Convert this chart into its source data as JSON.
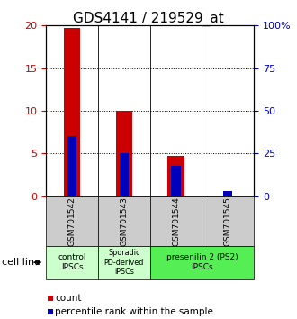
{
  "title": "GDS4141 / 219529_at",
  "samples": [
    "GSM701542",
    "GSM701543",
    "GSM701544",
    "GSM701545"
  ],
  "count_values": [
    19.7,
    10.0,
    4.7,
    0.0
  ],
  "percentile_values": [
    35,
    25,
    18,
    3
  ],
  "left_ylim": [
    0,
    20
  ],
  "right_ylim": [
    0,
    100
  ],
  "left_yticks": [
    0,
    5,
    10,
    15,
    20
  ],
  "right_yticks": [
    0,
    25,
    50,
    75,
    100
  ],
  "right_yticklabels": [
    "0",
    "25",
    "50",
    "75",
    "100%"
  ],
  "bar_color": "#cc0000",
  "percentile_color": "#0000bb",
  "bar_width": 0.32,
  "ytick_color_left": "#cc0000",
  "ytick_color_right": "#0000bb",
  "title_fontsize": 11,
  "tick_fontsize": 8,
  "sample_fontsize": 6.5,
  "group_fontsize": 6.5,
  "legend_fontsize": 7.5,
  "cell_line_fontsize": 8,
  "group1_color": "#ccffcc",
  "group2_color": "#55ee55",
  "sample_box_color": "#cccccc"
}
